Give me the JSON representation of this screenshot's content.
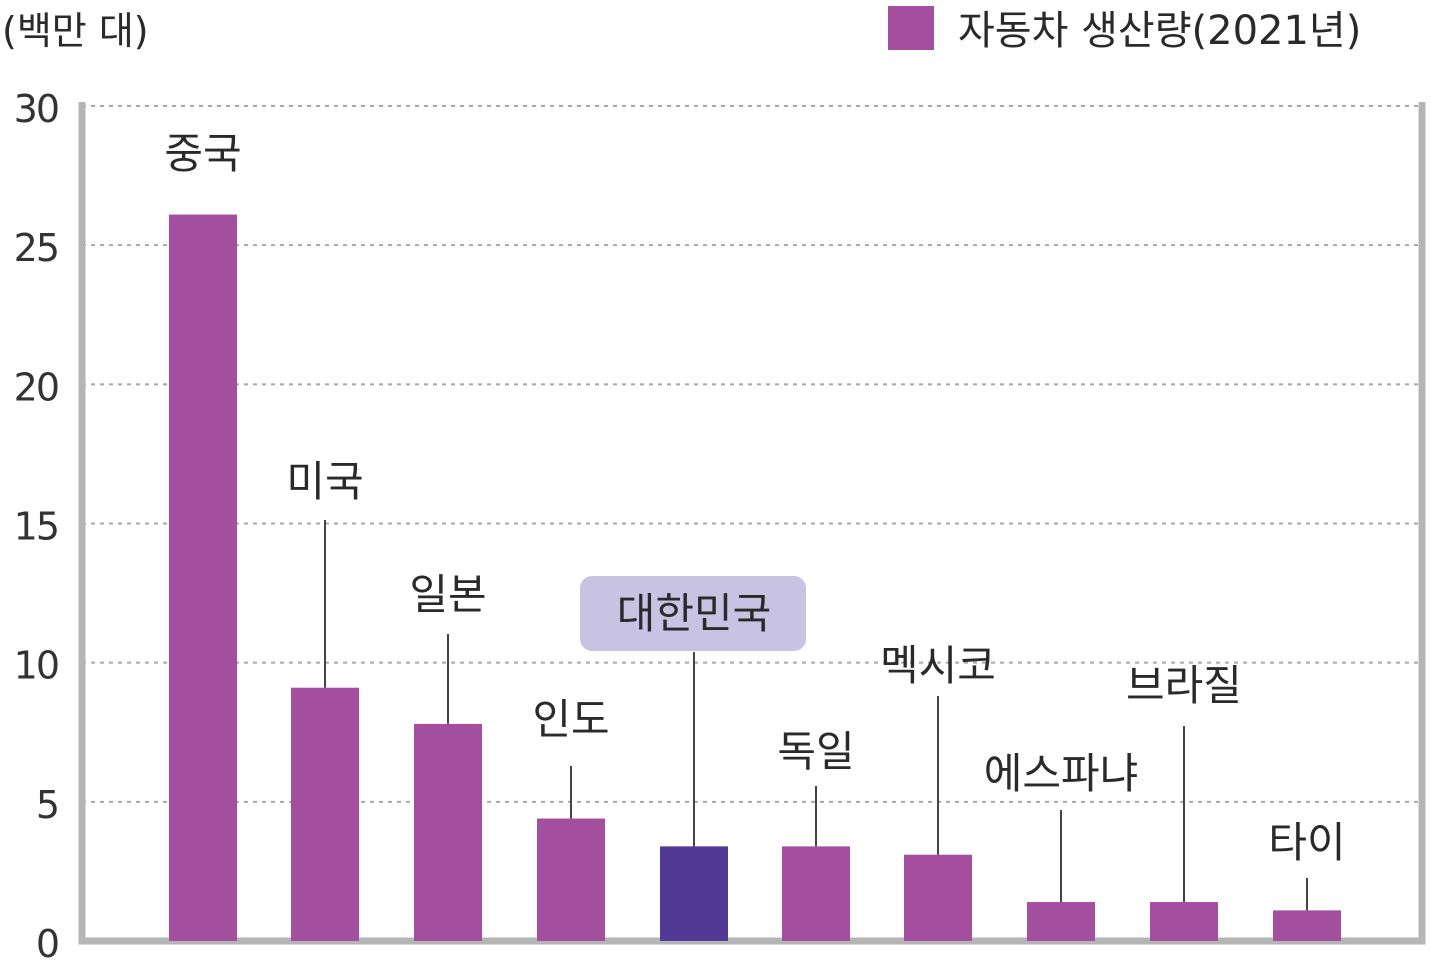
{
  "chart_data": {
    "type": "bar",
    "ylabel": "(백만 대)",
    "legend": {
      "label": "자동차 생산량(2021년)",
      "color": "#a34e9e",
      "position": "top-right"
    },
    "categories": [
      "중국",
      "미국",
      "일본",
      "인도",
      "대한민국",
      "독일",
      "멕시코",
      "에스파냐",
      "브라질",
      "타이"
    ],
    "values": [
      26.1,
      9.1,
      7.8,
      4.4,
      3.4,
      3.4,
      3.1,
      1.4,
      1.4,
      1.1
    ],
    "highlight": "대한민국",
    "ylim": [
      0,
      30
    ],
    "yticks": [
      0,
      5,
      10,
      15,
      20,
      25,
      30
    ],
    "grid": true,
    "colors": {
      "bar": "#a34e9e",
      "highlight_bar": "#523996",
      "highlight_label_bg": "#c9c3e3",
      "grid": "#a8a8a8",
      "frame": "#b5b5b5"
    }
  }
}
